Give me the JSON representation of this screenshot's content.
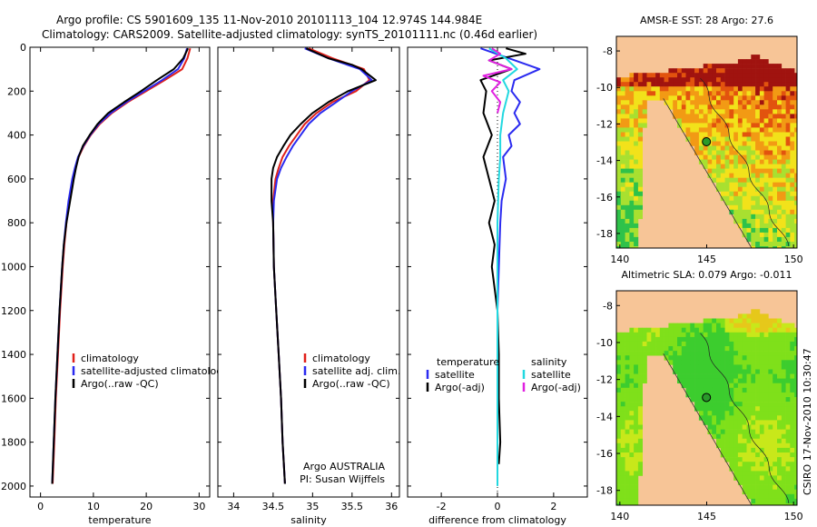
{
  "header": {
    "line1": "Argo profile: CS 5901609_135 11-Nov-2010 20101113_104 12.974S 144.984E",
    "line2": "Climatology: CARS2009. Satellite-adjusted climatology: synTS_20101111.nc (0.46d earlier)"
  },
  "footer": {
    "stamp": "CSIRO 17-Nov-2010 10:30:47"
  },
  "chart_data": [
    {
      "type": "line",
      "panel": "temperature",
      "xlabel": "temperature",
      "ylabel": "",
      "xlim": [
        -2,
        32
      ],
      "ylim": [
        2050,
        0
      ],
      "xticks": [
        "0",
        "10",
        "20",
        "30"
      ],
      "xtick_values": [
        0,
        10,
        20,
        30
      ],
      "yticks": [
        "0",
        "200",
        "400",
        "600",
        "800",
        "1000",
        "1200",
        "1400",
        "1600",
        "1800",
        "2000"
      ],
      "ytick_values": [
        0,
        200,
        400,
        600,
        800,
        1000,
        1200,
        1400,
        1600,
        1800,
        2000
      ],
      "legend": [
        "climatology",
        "satellite-adjusted climatology",
        "Argo(..raw -QC)"
      ],
      "series": [
        {
          "name": "climatology",
          "color": "#e0201a",
          "depth": [
            5,
            50,
            100,
            150,
            200,
            250,
            300,
            350,
            400,
            450,
            500,
            550,
            600,
            700,
            800,
            900,
            1000,
            1200,
            1400,
            1600,
            1800,
            1990
          ],
          "values": [
            28.3,
            27.8,
            26.8,
            23.5,
            20.0,
            16.5,
            13.5,
            11.2,
            9.5,
            8.2,
            7.2,
            6.6,
            6.1,
            5.4,
            4.9,
            4.5,
            4.2,
            3.7,
            3.3,
            2.9,
            2.6,
            2.3
          ]
        },
        {
          "name": "satellite-adjusted climatology",
          "color": "#2a2af0",
          "depth": [
            5,
            50,
            100,
            150,
            200,
            250,
            300,
            350,
            400,
            450,
            500,
            550,
            600,
            700,
            800,
            900,
            1000,
            1200,
            1400,
            1600,
            1800,
            1990
          ],
          "values": [
            27.7,
            27.2,
            26.0,
            23.0,
            19.6,
            16.2,
            13.3,
            11.0,
            9.4,
            8.1,
            7.1,
            6.5,
            6.0,
            5.3,
            4.8,
            4.4,
            4.1,
            3.6,
            3.2,
            2.8,
            2.5,
            2.2
          ]
        },
        {
          "name": "Argo(..raw -QC)",
          "color": "#000000",
          "depth": [
            5,
            50,
            100,
            150,
            200,
            250,
            300,
            350,
            400,
            450,
            500,
            550,
            600,
            700,
            800,
            900,
            1000,
            1200,
            1400,
            1600,
            1800,
            1990
          ],
          "values": [
            27.9,
            27.0,
            25.2,
            22.0,
            19.0,
            15.8,
            12.8,
            10.8,
            9.3,
            8.0,
            7.2,
            6.7,
            6.3,
            5.6,
            4.9,
            4.4,
            4.1,
            3.6,
            3.2,
            2.8,
            2.5,
            2.2
          ]
        }
      ]
    },
    {
      "type": "line",
      "panel": "salinity",
      "xlabel": "salinity",
      "ylabel": "",
      "xlim": [
        33.8,
        36.1
      ],
      "ylim": [
        2050,
        0
      ],
      "xticks": [
        "34",
        "34.5",
        "35",
        "35.5",
        "36"
      ],
      "xtick_values": [
        34,
        34.5,
        35,
        35.5,
        36
      ],
      "legend": [
        "climatology",
        "satellite adj. clim.",
        "Argo(..raw -QC)"
      ],
      "annotation": [
        "Argo AUSTRALIA",
        "PI: Susan Wijffels"
      ],
      "series": [
        {
          "name": "climatology",
          "color": "#e0201a",
          "depth": [
            5,
            50,
            100,
            150,
            200,
            250,
            300,
            350,
            400,
            450,
            500,
            550,
            600,
            700,
            800,
            1000,
            1200,
            1400,
            1600,
            1800,
            1990
          ],
          "values": [
            34.95,
            35.25,
            35.65,
            35.72,
            35.55,
            35.25,
            35.05,
            34.9,
            34.8,
            34.7,
            34.62,
            34.57,
            34.53,
            34.5,
            34.5,
            34.51,
            34.54,
            34.57,
            34.6,
            34.62,
            34.65
          ]
        },
        {
          "name": "satellite adj. clim.",
          "color": "#2a2af0",
          "depth": [
            5,
            50,
            100,
            150,
            200,
            250,
            300,
            350,
            400,
            450,
            500,
            550,
            600,
            700,
            800,
            1000,
            1200,
            1400,
            1600,
            1800,
            1990
          ],
          "values": [
            34.9,
            35.2,
            35.6,
            35.75,
            35.5,
            35.3,
            35.1,
            34.95,
            34.85,
            34.75,
            34.67,
            34.6,
            34.55,
            34.51,
            34.5,
            34.51,
            34.54,
            34.57,
            34.6,
            34.62,
            34.65
          ]
        },
        {
          "name": "Argo(..raw -QC)",
          "color": "#000000",
          "depth": [
            5,
            50,
            80,
            100,
            150,
            200,
            250,
            300,
            350,
            400,
            450,
            500,
            550,
            600,
            700,
            800,
            1000,
            1200,
            1400,
            1600,
            1800,
            1990
          ],
          "values": [
            34.92,
            35.2,
            35.5,
            35.62,
            35.8,
            35.45,
            35.2,
            35.0,
            34.85,
            34.72,
            34.63,
            34.55,
            34.5,
            34.48,
            34.48,
            34.5,
            34.51,
            34.54,
            34.57,
            34.6,
            34.62,
            34.65
          ]
        }
      ]
    },
    {
      "type": "line",
      "panel": "difference",
      "xlabel": "difference from climatology",
      "ylabel": "",
      "xlim": [
        -3.2,
        3.2
      ],
      "ylim": [
        2050,
        0
      ],
      "xticks": [
        "-2",
        "0",
        "2"
      ],
      "xtick_values": [
        -2,
        0,
        2
      ],
      "legend_left": {
        "title": "temperature",
        "items": [
          "satellite",
          "Argo(-adj)"
        ]
      },
      "legend_right": {
        "title": "salinity",
        "items": [
          "satellite",
          "Argo(-adj)"
        ]
      },
      "series": [
        {
          "name": "temperature satellite",
          "color": "#2a2af0",
          "depth": [
            5,
            50,
            100,
            150,
            200,
            250,
            300,
            350,
            400,
            450,
            500,
            600,
            700,
            800,
            1000,
            1200,
            1400
          ],
          "values": [
            -0.6,
            0.4,
            1.5,
            0.6,
            0.5,
            0.8,
            0.6,
            0.8,
            0.4,
            0.5,
            0.2,
            0.3,
            0.15,
            0.1,
            0.05,
            0.0,
            0.0
          ]
        },
        {
          "name": "temperature Argo(-adj)",
          "color": "#000000",
          "depth": [
            5,
            30,
            60,
            100,
            150,
            200,
            300,
            400,
            500,
            600,
            700,
            800,
            900,
            1000,
            1200,
            1400,
            1600,
            1800,
            1900
          ],
          "values": [
            0.3,
            1.0,
            -0.3,
            0.5,
            -0.6,
            -0.4,
            -0.5,
            -0.2,
            -0.5,
            -0.3,
            -0.1,
            -0.3,
            -0.1,
            -0.2,
            0.0,
            0.05,
            0.05,
            0.1,
            0.05
          ]
        },
        {
          "name": "salinity satellite",
          "color": "#22d8e0",
          "depth": [
            5,
            50,
            100,
            150,
            200,
            300,
            400,
            500,
            600,
            800,
            1000,
            1200,
            1400,
            1600,
            1800,
            2000
          ],
          "values": [
            -0.3,
            0.3,
            0.7,
            0.2,
            0.4,
            0.2,
            0.1,
            0.1,
            0.05,
            0.0,
            0.0,
            0.0,
            0.0,
            0.0,
            0.0,
            0.0
          ]
        },
        {
          "name": "salinity Argo(-adj)",
          "color": "#e020e0",
          "depth": [
            5,
            30,
            60,
            100,
            130,
            160,
            200,
            250,
            300
          ],
          "values": [
            -0.2,
            0.1,
            -0.3,
            0.5,
            -0.5,
            0.1,
            -0.2,
            0.1,
            0.0
          ]
        }
      ]
    }
  ],
  "maps": [
    {
      "title": "AMSR-E SST: 28 Argo: 27.6",
      "xticks": [
        "140",
        "145",
        "150"
      ],
      "yticks": [
        "-8",
        "-10",
        "-12",
        "-14",
        "-16",
        "-18"
      ]
    },
    {
      "title": "Altimetric SLA: 0.079 Argo: -0.011",
      "xticks": [
        "140",
        "145",
        "150"
      ],
      "yticks": [
        "-8",
        "-10",
        "-12",
        "-14",
        "-16",
        "-18"
      ]
    }
  ],
  "colors": {
    "land": "#f7c597",
    "marker": "#2a9a2a"
  }
}
